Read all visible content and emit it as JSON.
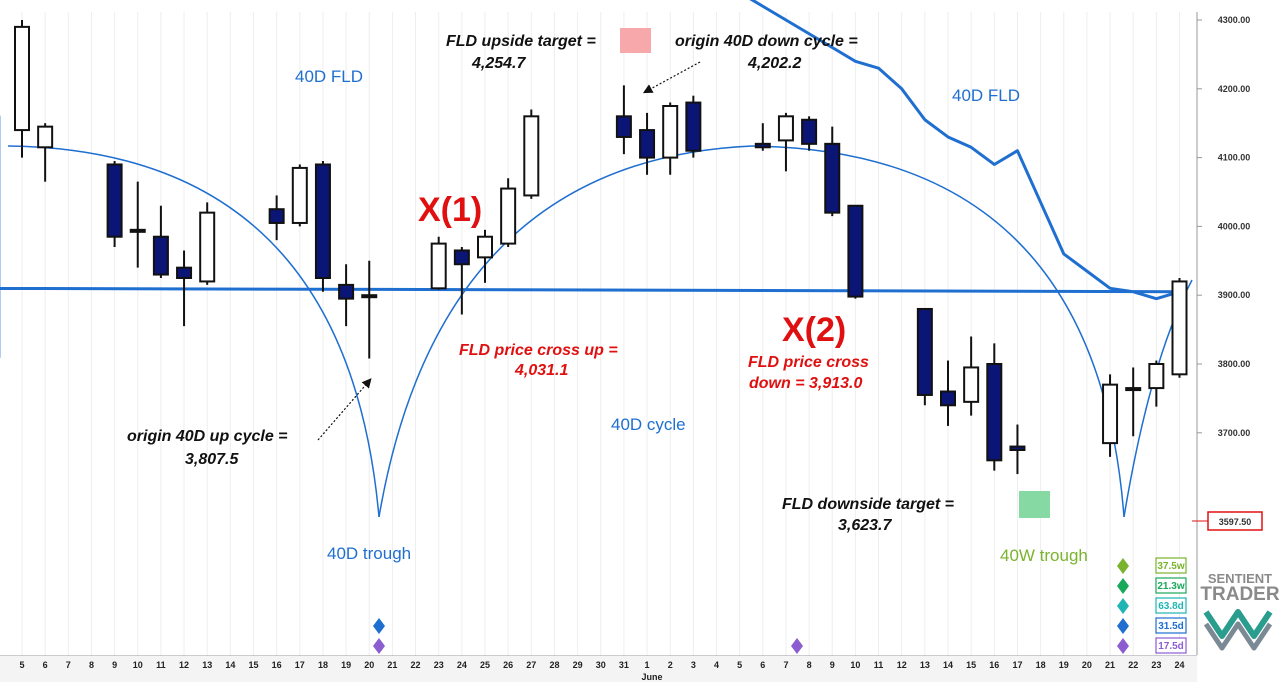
{
  "chart_data": {
    "type": "candlestick",
    "title": "",
    "xlabel": "",
    "ylabel": "",
    "ylim": [
      3520,
      4320
    ],
    "y_ticks": [
      "4300.00",
      "4200.00",
      "4100.00",
      "4000.00",
      "3900.00",
      "3800.00",
      "3700.00"
    ],
    "current_price_label": "3597.50",
    "x_ticks": [
      "5",
      "6",
      "7",
      "8",
      "9",
      "10",
      "11",
      "12",
      "13",
      "14",
      "15",
      "16",
      "17",
      "18",
      "19",
      "20",
      "21",
      "22",
      "23",
      "24",
      "25",
      "26",
      "27",
      "28",
      "29",
      "30",
      "31",
      "1",
      "2",
      "3",
      "4",
      "5",
      "6",
      "7",
      "8",
      "9",
      "10",
      "11",
      "12",
      "13",
      "14",
      "15",
      "16",
      "17",
      "18",
      "19",
      "20",
      "21",
      "22",
      "23",
      "24"
    ],
    "month_label": "June",
    "candles": [
      {
        "x": 5,
        "o": 4140,
        "h": 4300,
        "l": 4100,
        "c": 4290
      },
      {
        "x": 6,
        "o": 4115,
        "h": 4150,
        "l": 4065,
        "c": 4145
      },
      {
        "x": 9,
        "o": 4090,
        "h": 4095,
        "l": 3970,
        "c": 3985
      },
      {
        "x": 10,
        "o": 3995,
        "h": 4065,
        "l": 3940,
        "c": 3995
      },
      {
        "x": 11,
        "o": 3985,
        "h": 4030,
        "l": 3925,
        "c": 3930
      },
      {
        "x": 12,
        "o": 3940,
        "h": 3965,
        "l": 3855,
        "c": 3925
      },
      {
        "x": 13,
        "o": 3920,
        "h": 4035,
        "l": 3915,
        "c": 4020
      },
      {
        "x": 16,
        "o": 4025,
        "h": 4045,
        "l": 3980,
        "c": 4005
      },
      {
        "x": 17,
        "o": 4005,
        "h": 4090,
        "l": 4000,
        "c": 4085
      },
      {
        "x": 18,
        "o": 4090,
        "h": 4095,
        "l": 3905,
        "c": 3925
      },
      {
        "x": 19,
        "o": 3915,
        "h": 3945,
        "l": 3855,
        "c": 3895
      },
      {
        "x": 20,
        "o": 3900,
        "h": 3950,
        "l": 3808,
        "c": 3898
      },
      {
        "x": 23,
        "o": 3910,
        "h": 3985,
        "l": 3908,
        "c": 3975
      },
      {
        "x": 24,
        "o": 3965,
        "h": 3970,
        "l": 3872,
        "c": 3945
      },
      {
        "x": 25,
        "o": 3955,
        "h": 3995,
        "l": 3918,
        "c": 3985
      },
      {
        "x": 26,
        "o": 3975,
        "h": 4070,
        "l": 3970,
        "c": 4055
      },
      {
        "x": 27,
        "o": 4045,
        "h": 4170,
        "l": 4040,
        "c": 4160
      },
      {
        "x": 31,
        "o": 4160,
        "h": 4205,
        "l": 4105,
        "c": 4130
      },
      {
        "x": 1,
        "o": 4140,
        "h": 4165,
        "l": 4075,
        "c": 4100
      },
      {
        "x": 2,
        "o": 4100,
        "h": 4180,
        "l": 4075,
        "c": 4175
      },
      {
        "x": 3,
        "o": 4180,
        "h": 4190,
        "l": 4100,
        "c": 4110
      },
      {
        "x": 6,
        "o": 4120,
        "h": 4150,
        "l": 4110,
        "c": 4115
      },
      {
        "x": 7,
        "o": 4125,
        "h": 4165,
        "l": 4080,
        "c": 4160
      },
      {
        "x": 8,
        "o": 4155,
        "h": 4160,
        "l": 4110,
        "c": 4120
      },
      {
        "x": 9,
        "o": 4120,
        "h": 4145,
        "l": 4015,
        "c": 4020
      },
      {
        "x": 10,
        "o": 4030,
        "h": 4030,
        "l": 3895,
        "c": 3898
      },
      {
        "x": 13,
        "o": 3880,
        "h": 3880,
        "l": 3740,
        "c": 3755
      },
      {
        "x": 14,
        "o": 3760,
        "h": 3805,
        "l": 3710,
        "c": 3740
      },
      {
        "x": 15,
        "o": 3745,
        "h": 3840,
        "l": 3725,
        "c": 3795
      },
      {
        "x": 16,
        "o": 3800,
        "h": 3830,
        "l": 3645,
        "c": 3660
      },
      {
        "x": 17,
        "o": 3680,
        "h": 3712,
        "l": 3640,
        "c": 3675
      },
      {
        "x": 21,
        "o": 3685,
        "h": 3785,
        "l": 3665,
        "c": 3770
      },
      {
        "x": 22,
        "o": 3765,
        "h": 3795,
        "l": 3695,
        "c": 3765
      },
      {
        "x": 23,
        "o": 3765,
        "h": 3805,
        "l": 3738,
        "c": 3800
      },
      {
        "x": 24,
        "o": 3785,
        "h": 3925,
        "l": 3780,
        "c": 3920
      }
    ],
    "series": [
      {
        "name": "40D FLD",
        "x": [
          4,
          5,
          6,
          7,
          8,
          9,
          10,
          11,
          12,
          13,
          14,
          15,
          16,
          17,
          18,
          19,
          20,
          21,
          22,
          23,
          24,
          25,
          26,
          27,
          28,
          29,
          30,
          31,
          1,
          2,
          3,
          4,
          5,
          6,
          7,
          8,
          9,
          10,
          11,
          12,
          13,
          14,
          15,
          16,
          17,
          18,
          19,
          20,
          21,
          22,
          23,
          24
        ],
        "values": [
          4360,
          4340,
          4320,
          4300,
          4280,
          4260,
          4240,
          4230,
          4200,
          4155,
          4130,
          4115,
          4090,
          4110,
          4035,
          3960,
          3935,
          3910,
          3905,
          3895,
          3905,
          3910,
          4105,
          4060,
          4040,
          4015,
          4000,
          3920,
          3900,
          3880,
          3860,
          3855,
          3840,
          3820,
          3810,
          3840,
          3860,
          3890,
          3920,
          3955,
          4010,
          4050,
          4100,
          4130,
          4150,
          4160,
          4155,
          4140,
          4135,
          4130,
          4125,
          4120
        ]
      }
    ]
  },
  "annotations": {
    "fld_label_1": "40D FLD",
    "fld_label_2": "40D FLD",
    "cycle_label": "40D cycle",
    "trough_label_1": "40D trough",
    "trough_label_2": "40W trough",
    "x1": "X(1)",
    "x2": "X(2)",
    "upside_line1": "FLD upside target =",
    "upside_line2": "4,254.7",
    "origin_down_line1": "origin 40D down cycle =",
    "origin_down_line2": "4,202.2",
    "origin_up_line1": "origin 40D up cycle =",
    "origin_up_line2": "3,807.5",
    "cross_up_line1": "FLD price cross up =",
    "cross_up_line2": "4,031.1",
    "cross_down_line1": "FLD price cross",
    "cross_down_line2": "down = 3,913.0",
    "downside_line1": "FLD downside target =",
    "downside_line2": "3,623.7"
  },
  "legend": {
    "items": [
      {
        "label": "37.5w",
        "color": "#7ab32e"
      },
      {
        "label": "21.3w",
        "color": "#1aa85a"
      },
      {
        "label": "63.8d",
        "color": "#1fb5b5"
      },
      {
        "label": "31.5d",
        "color": "#1f6fd1"
      },
      {
        "label": "17.5d",
        "color": "#8c5cd1"
      }
    ]
  },
  "logo": {
    "line1": "SENTIENT",
    "line2": "TRADER"
  },
  "colors": {
    "bear": "#0b1575",
    "bull": "#ffffff",
    "fld": "#1f6fd1",
    "red": "#e01010",
    "upside_box": "#f7a8aa",
    "downside_box": "#86d9a3"
  }
}
